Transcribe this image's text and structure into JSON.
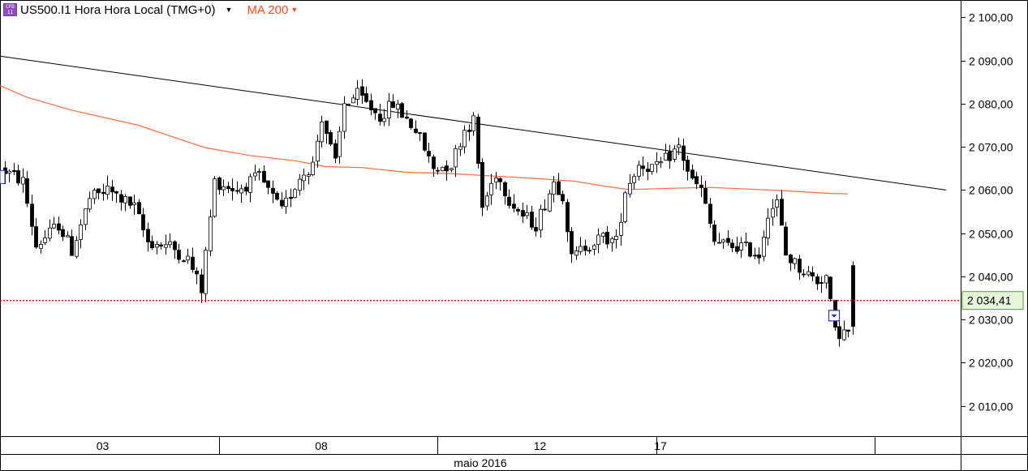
{
  "header": {
    "instrument_icon": "cfd-instrument-icon",
    "title": "US500.I1 Hora Hora Local (TMG+0)",
    "ma_label": "MA 200",
    "dropdown_icon": "caret-down-icon"
  },
  "colors": {
    "candle": "#000000",
    "ma_line": "#ff6a3d",
    "trendline": "#000000",
    "price_line": "#cc0000",
    "price_box_bg": "#e6f7d9",
    "price_box_border": "#5a9a3c",
    "marker": "#2f2fbf"
  },
  "chart_data": {
    "type": "candlestick",
    "title": "US500.I1 Hora Hora Local (TMG+0)",
    "xlabel": "maio 2016",
    "ylabel": "",
    "ylim": [
      2003,
      2104
    ],
    "y_ticks": [
      2010,
      2020,
      2030,
      2040,
      2050,
      2060,
      2070,
      2080,
      2090,
      2100
    ],
    "y_tick_labels": [
      "2 010,00",
      "2 020,00",
      "2 030,00",
      "2 040,00",
      "2 050,00",
      "2 060,00",
      "2 070,00",
      "2 080,00",
      "2 090,00",
      "2 100,00"
    ],
    "x_count": 191,
    "x_day_labels": [
      {
        "i": 22,
        "label": "03"
      },
      {
        "i": 71,
        "label": "08"
      },
      {
        "i": 120,
        "label": "12"
      },
      {
        "i": 147,
        "label": "17"
      }
    ],
    "x_day_separators": [
      48,
      97,
      146,
      195
    ],
    "last_price": 2034.41,
    "last_price_label": "2 034,41",
    "grid": false,
    "legend": "none",
    "trendline": {
      "x0": -1,
      "y0": 2091,
      "x1": 211,
      "y1": 2060
    },
    "ma200": {
      "name": "MA 200",
      "points": [
        [
          -1,
          2084.2
        ],
        [
          5,
          2081.5
        ],
        [
          15,
          2078.5
        ],
        [
          30,
          2075.0
        ],
        [
          40,
          2071.5
        ],
        [
          45,
          2069.8
        ],
        [
          55,
          2068.0
        ],
        [
          65,
          2066.8
        ],
        [
          72,
          2065.4
        ],
        [
          80,
          2065.2
        ],
        [
          90,
          2064.1
        ],
        [
          100,
          2063.8
        ],
        [
          110,
          2063.2
        ],
        [
          120,
          2062.6
        ],
        [
          128,
          2062.0
        ],
        [
          135,
          2060.8
        ],
        [
          140,
          2060.1
        ],
        [
          150,
          2060.4
        ],
        [
          158,
          2060.6
        ],
        [
          165,
          2060.3
        ],
        [
          175,
          2059.8
        ],
        [
          185,
          2059.2
        ],
        [
          189,
          2059.1
        ]
      ]
    },
    "buy_marker": {
      "i": 186,
      "price": 2031
    },
    "edge_marker": {
      "i": 0,
      "price": 2063
    },
    "anchors": [
      [
        0,
        2065
      ],
      [
        5,
        2062
      ],
      [
        8,
        2047
      ],
      [
        13,
        2052
      ],
      [
        16,
        2046
      ],
      [
        20,
        2058
      ],
      [
        24,
        2060
      ],
      [
        30,
        2056
      ],
      [
        33,
        2048
      ],
      [
        38,
        2047
      ],
      [
        42,
        2044
      ],
      [
        45,
        2037
      ],
      [
        48,
        2062
      ],
      [
        53,
        2060
      ],
      [
        58,
        2063
      ],
      [
        63,
        2055
      ],
      [
        67,
        2063
      ],
      [
        70,
        2066
      ],
      [
        72,
        2077
      ],
      [
        75,
        2066
      ],
      [
        77,
        2080
      ],
      [
        80,
        2082
      ],
      [
        85,
        2077
      ],
      [
        88,
        2080
      ],
      [
        93,
        2074
      ],
      [
        97,
        2065
      ],
      [
        101,
        2066
      ],
      [
        104,
        2074
      ],
      [
        106,
        2076
      ],
      [
        108,
        2056
      ],
      [
        111,
        2064
      ],
      [
        114,
        2058
      ],
      [
        117,
        2054
      ],
      [
        120,
        2052
      ],
      [
        124,
        2062
      ],
      [
        126,
        2059
      ],
      [
        128,
        2044
      ],
      [
        131,
        2047
      ],
      [
        135,
        2049
      ],
      [
        138,
        2048
      ],
      [
        140,
        2060
      ],
      [
        143,
        2066
      ],
      [
        147,
        2065
      ],
      [
        150,
        2068
      ],
      [
        152,
        2070
      ],
      [
        155,
        2062
      ],
      [
        157,
        2060
      ],
      [
        160,
        2048
      ],
      [
        163,
        2047
      ],
      [
        166,
        2047
      ],
      [
        170,
        2045
      ],
      [
        172,
        2055
      ],
      [
        174,
        2057
      ],
      [
        176,
        2045
      ],
      [
        179,
        2042
      ],
      [
        183,
        2039
      ],
      [
        185,
        2040
      ],
      [
        187,
        2027
      ]
    ]
  },
  "xaxis": {
    "tick_labels": [
      "03",
      "08",
      "12",
      "17"
    ],
    "month_label": "maio 2016"
  }
}
